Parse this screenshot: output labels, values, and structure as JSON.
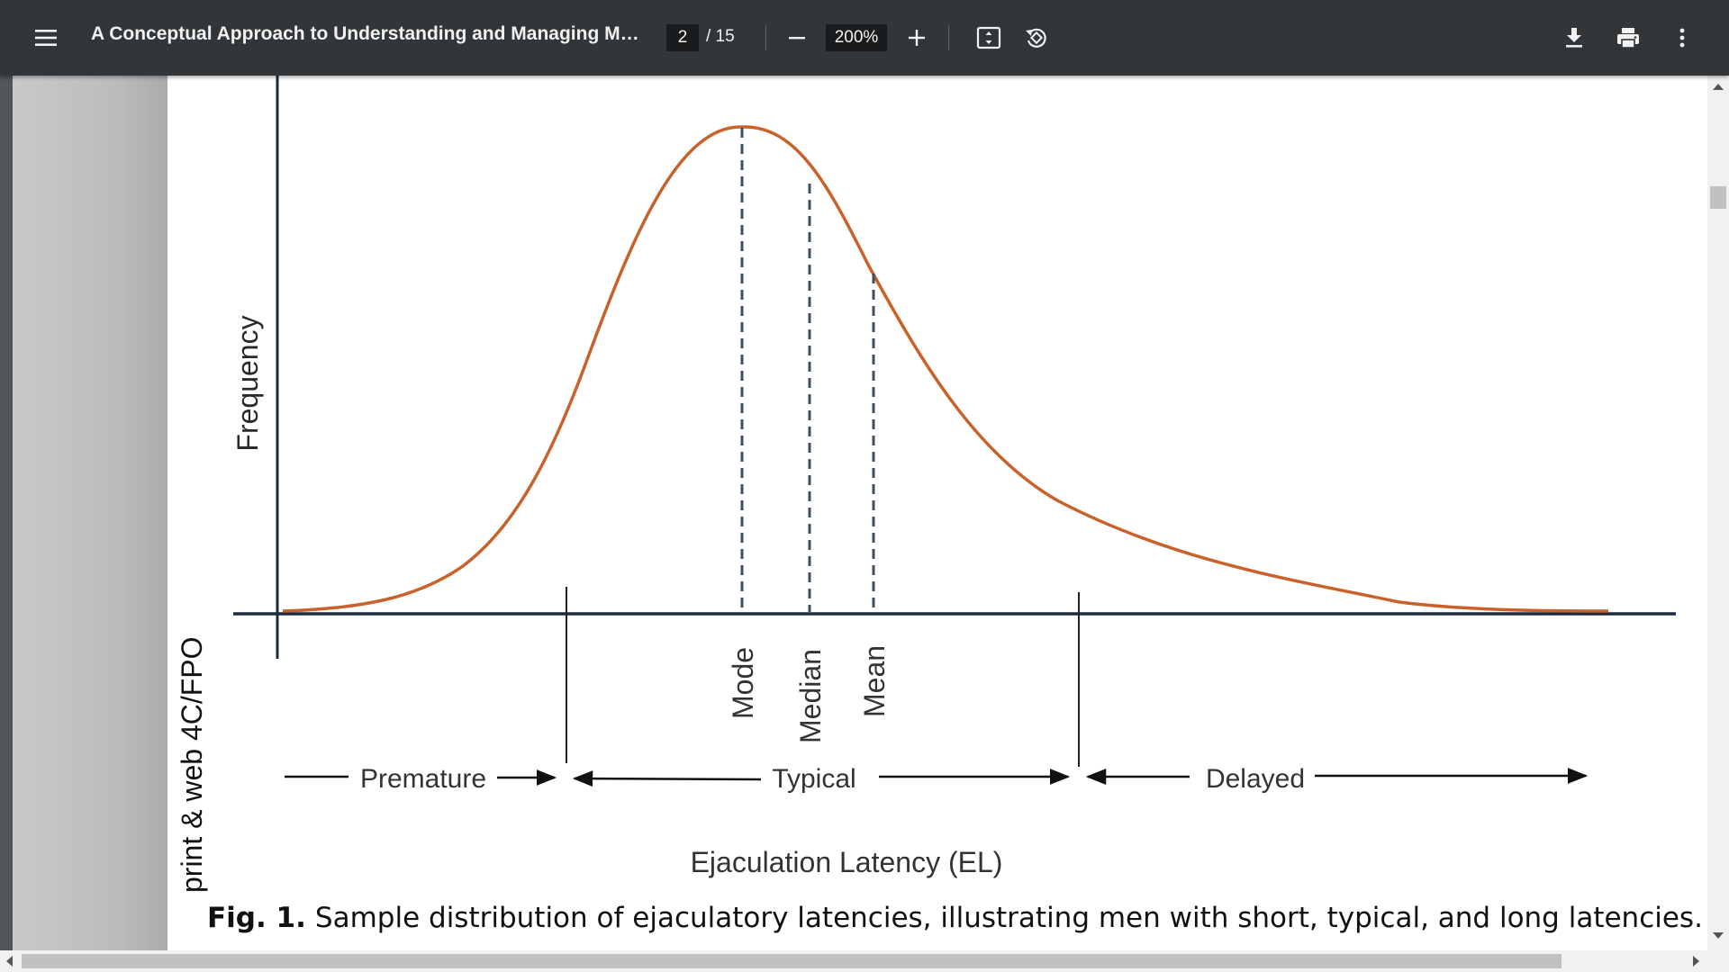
{
  "toolbar": {
    "menu_icon": "menu-icon",
    "title": "A Conceptual Approach to Understanding and Managing Men's ...",
    "page_current": "2",
    "page_total": "/ 15",
    "zoom_value": "200%",
    "icons": {
      "zoom_out": "minus-icon",
      "zoom_in": "plus-icon",
      "fit": "fit-to-page-icon",
      "rotate": "rotate-icon",
      "download": "download-icon",
      "print": "print-icon",
      "more": "more-vert-icon"
    },
    "background": "#323639"
  },
  "figure": {
    "side_label": "print & web 4C/FPO",
    "y_axis_label": "Frequency",
    "x_axis_label": "Ejaculation Latency (EL)",
    "markers": [
      "Mode",
      "Median",
      "Mean"
    ],
    "ranges": [
      "Premature",
      "Typical",
      "Delayed"
    ],
    "curve_color": "#c8622a",
    "axis_color": "#1b2a40",
    "marker_color": "#3d4f66"
  },
  "caption": {
    "label": "Fig. 1.",
    "text": "Sample distribution of ejaculatory latencies, illustrating men with short, typical, and long latencies."
  }
}
